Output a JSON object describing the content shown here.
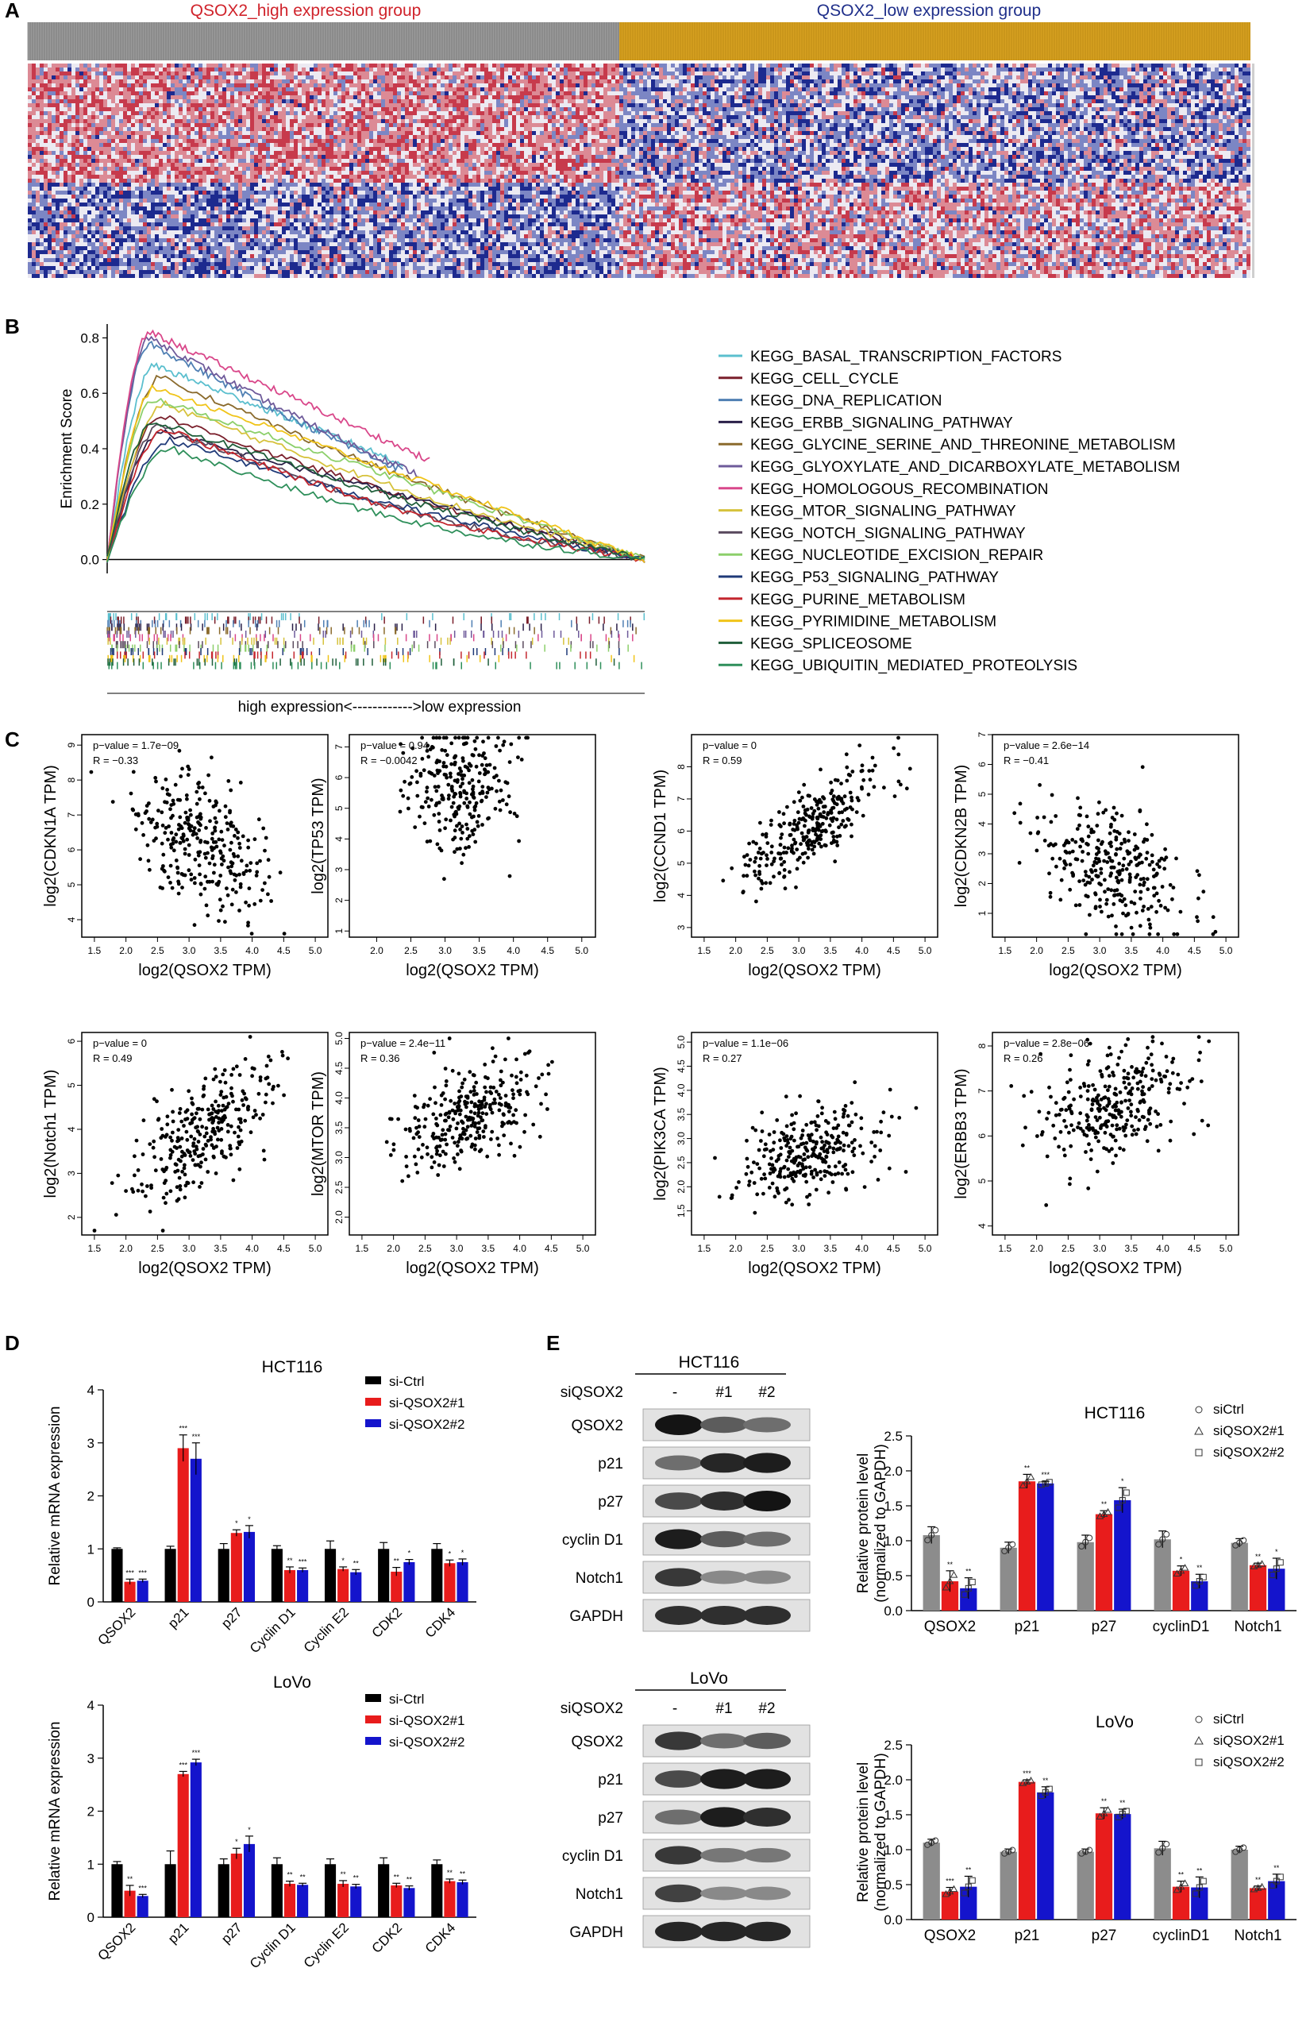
{
  "panel_letters": [
    "A",
    "B",
    "C",
    "D",
    "E"
  ],
  "colors": {
    "high_red": "#d0232b",
    "low_blue": "#1f2f8a",
    "heat_red": "#d24d5c",
    "heat_blue": "#27339a",
    "heat_white": "#f1f1f5",
    "gold": "#d6a020",
    "gray_bar": "#8c8c8c",
    "ctrl": "#000000",
    "kd1": "#e81c1c",
    "kd2": "#1414cc"
  },
  "panelA": {
    "high_group_label": "QSOX2_high expression group",
    "low_group_label": "QSOX2_low expression group"
  },
  "panelB": {
    "chart_data": {
      "type": "line",
      "title": "",
      "ylabel": "Enrichment Score",
      "xlabel": "high expression<------------>low expression",
      "ylim": [
        0,
        0.85
      ],
      "yticks": [
        "0.0",
        "0.2",
        "0.4",
        "0.6",
        "0.8"
      ],
      "series": [
        {
          "name": "KEGG_BASAL_TRANSCRIPTION_FACTORS",
          "color": "#5bbfce",
          "peak": 0.7,
          "peak_at": 0.09,
          "end_at": 0.55
        },
        {
          "name": "KEGG_CELL_CYCLE",
          "color": "#7a1f2b",
          "peak": 0.52,
          "peak_at": 0.1,
          "end_at": 1.0
        },
        {
          "name": "KEGG_DNA_REPLICATION",
          "color": "#4f7fb3",
          "peak": 0.78,
          "peak_at": 0.08,
          "end_at": 0.55
        },
        {
          "name": "KEGG_ERBB_SIGNALING_PATHWAY",
          "color": "#2a1f48",
          "peak": 0.46,
          "peak_at": 0.1,
          "end_at": 1.0
        },
        {
          "name": "KEGG_GLYCINE_SERINE_AND_THREONINE_METABOLISM",
          "color": "#8a6a2c",
          "peak": 0.66,
          "peak_at": 0.1,
          "end_at": 1.0
        },
        {
          "name": "KEGG_GLYOXYLATE_AND_DICARBOXYLATE_METABOLISM",
          "color": "#6e5a9a",
          "peak": 0.8,
          "peak_at": 0.08,
          "end_at": 0.58
        },
        {
          "name": "KEGG_HOMOLOGOUS_RECOMBINATION",
          "color": "#d9478a",
          "peak": 0.82,
          "peak_at": 0.08,
          "end_at": 0.6
        },
        {
          "name": "KEGG_MTOR_SIGNALING_PATHWAY",
          "color": "#d6c23c",
          "peak": 0.56,
          "peak_at": 0.11,
          "end_at": 1.0
        },
        {
          "name": "KEGG_NOTCH_SIGNALING_PATHWAY",
          "color": "#5a4a5e",
          "peak": 0.48,
          "peak_at": 0.1,
          "end_at": 1.0
        },
        {
          "name": "KEGG_NUCLEOTIDE_EXCISION_REPAIR",
          "color": "#8ccf6a",
          "peak": 0.58,
          "peak_at": 0.09,
          "end_at": 1.0
        },
        {
          "name": "KEGG_P53_SIGNALING_PATHWAY",
          "color": "#1f3a78",
          "peak": 0.43,
          "peak_at": 0.12,
          "end_at": 1.0
        },
        {
          "name": "KEGG_PURINE_METABOLISM",
          "color": "#c4262e",
          "peak": 0.47,
          "peak_at": 0.11,
          "end_at": 1.0
        },
        {
          "name": "KEGG_PYRIMIDINE_METABOLISM",
          "color": "#f0c419",
          "peak": 0.62,
          "peak_at": 0.09,
          "end_at": 1.0
        },
        {
          "name": "KEGG_SPLICEOSOME",
          "color": "#1f5e3a",
          "peak": 0.5,
          "peak_at": 0.09,
          "end_at": 1.0
        },
        {
          "name": "KEGG_UBIQUITIN_MEDIATED_PROTEOLYSIS",
          "color": "#2e8f5a",
          "peak": 0.4,
          "peak_at": 0.12,
          "end_at": 1.0
        }
      ]
    }
  },
  "panelC": {
    "chart_data": [
      {
        "type": "scatter",
        "ylabel": "log2(CDKN1A TPM)",
        "xlabel": "log2(QSOX2 TPM)",
        "pvalue": "p−value = 1.7e−09",
        "R": "R = −0.33",
        "xlim": [
          1.3,
          5.2
        ],
        "ylim": [
          3.5,
          9.3
        ],
        "xticks": [
          "1.5",
          "2.0",
          "2.5",
          "3.0",
          "3.5",
          "4.0",
          "4.5",
          "5.0"
        ],
        "yticks": [
          "4",
          "5",
          "6",
          "7",
          "8",
          "9"
        ],
        "slope": -0.8,
        "intercept": 8.7,
        "spread": 0.9,
        "n": 300,
        "xcenter": 3.2,
        "xsd": 0.55
      },
      {
        "type": "scatter",
        "ylabel": "log2(TP53 TPM)",
        "xlabel": "log2(QSOX2 TPM)",
        "pvalue": "p−value = 0.94",
        "R": "R = −0.0042",
        "xlim": [
          1.6,
          5.2
        ],
        "ylim": [
          0.8,
          7.4
        ],
        "xticks": [
          "2.0",
          "2.5",
          "3.0",
          "3.5",
          "4.0",
          "4.5",
          "5.0"
        ],
        "yticks": [
          "1",
          "2",
          "3",
          "4",
          "5",
          "6",
          "7"
        ],
        "slope": 0.0,
        "intercept": 5.7,
        "spread": 1.0,
        "n": 260,
        "xcenter": 3.2,
        "xsd": 0.4
      },
      {
        "type": "scatter",
        "ylabel": "log2(CCND1 TPM)",
        "xlabel": "log2(QSOX2 TPM)",
        "pvalue": "p−value = 0",
        "R": "R = 0.59",
        "xlim": [
          1.3,
          5.2
        ],
        "ylim": [
          2.7,
          9.0
        ],
        "xticks": [
          "1.5",
          "2.0",
          "2.5",
          "3.0",
          "3.5",
          "4.0",
          "4.5",
          "5.0"
        ],
        "yticks": [
          "3",
          "4",
          "5",
          "6",
          "7",
          "8"
        ],
        "slope": 1.3,
        "intercept": 2.0,
        "spread": 0.6,
        "n": 300,
        "xcenter": 3.2,
        "xsd": 0.55
      },
      {
        "type": "scatter",
        "ylabel": "log2(CDKN2B TPM)",
        "xlabel": "log2(QSOX2 TPM)",
        "pvalue": "p−value = 2.6e−14",
        "R": "R = −0.41",
        "xlim": [
          1.3,
          5.2
        ],
        "ylim": [
          0.2,
          7.0
        ],
        "xticks": [
          "1.5",
          "2.0",
          "2.5",
          "3.0",
          "3.5",
          "4.0",
          "4.5",
          "5.0"
        ],
        "yticks": [
          "1",
          "2",
          "3",
          "4",
          "5",
          "6",
          "7"
        ],
        "slope": -0.9,
        "intercept": 5.4,
        "spread": 1.0,
        "n": 300,
        "xcenter": 3.2,
        "xsd": 0.55
      },
      {
        "type": "scatter",
        "ylabel": "log2(Notch1 TPM)",
        "xlabel": "log2(QSOX2 TPM)",
        "pvalue": "p−value = 0",
        "R": "R = 0.49",
        "xlim": [
          1.3,
          5.2
        ],
        "ylim": [
          1.6,
          6.2
        ],
        "xticks": [
          "1.5",
          "2.0",
          "2.5",
          "3.0",
          "3.5",
          "4.0",
          "4.5",
          "5.0"
        ],
        "yticks": [
          "2",
          "3",
          "4",
          "5",
          "6"
        ],
        "slope": 0.85,
        "intercept": 1.2,
        "spread": 0.6,
        "n": 300,
        "xcenter": 3.2,
        "xsd": 0.55
      },
      {
        "type": "scatter",
        "ylabel": "log2(MTOR TPM)",
        "xlabel": "log2(QSOX2 TPM)",
        "pvalue": "p−value = 2.4e−11",
        "R": "R = 0.36",
        "xlim": [
          1.3,
          5.2
        ],
        "ylim": [
          1.7,
          5.1
        ],
        "xticks": [
          "1.5",
          "2.0",
          "2.5",
          "3.0",
          "3.5",
          "4.0",
          "4.5",
          "5.0"
        ],
        "yticks": [
          "2.0",
          "2.5",
          "3.0",
          "3.5",
          "4.0",
          "4.5",
          "5.0"
        ],
        "slope": 0.45,
        "intercept": 2.3,
        "spread": 0.4,
        "n": 300,
        "xcenter": 3.2,
        "xsd": 0.55
      },
      {
        "type": "scatter",
        "ylabel": "log2(PIK3CA TPM)",
        "xlabel": "log2(QSOX2 TPM)",
        "pvalue": "p−value = 1.1e−06",
        "R": "R = 0.27",
        "xlim": [
          1.3,
          5.2
        ],
        "ylim": [
          1.0,
          5.2
        ],
        "xticks": [
          "1.5",
          "2.0",
          "2.5",
          "3.0",
          "3.5",
          "4.0",
          "4.5",
          "5.0"
        ],
        "yticks": [
          "1.5",
          "2.0",
          "2.5",
          "3.0",
          "3.5",
          "4.0",
          "4.5",
          "5.0"
        ],
        "slope": 0.35,
        "intercept": 1.6,
        "spread": 0.45,
        "n": 300,
        "xcenter": 3.2,
        "xsd": 0.55
      },
      {
        "type": "scatter",
        "ylabel": "log2(ERBB3 TPM)",
        "xlabel": "log2(QSOX2 TPM)",
        "pvalue": "p−value = 2.8e−06",
        "R": "R = 0.26",
        "xlim": [
          1.3,
          5.2
        ],
        "ylim": [
          3.8,
          8.3
        ],
        "xticks": [
          "1.5",
          "2.0",
          "2.5",
          "3.0",
          "3.5",
          "4.0",
          "4.5",
          "5.0"
        ],
        "yticks": [
          "4",
          "5",
          "6",
          "7",
          "8"
        ],
        "slope": 0.45,
        "intercept": 5.2,
        "spread": 0.6,
        "n": 300,
        "xcenter": 3.2,
        "xsd": 0.55
      }
    ]
  },
  "panelD": {
    "chart_data": [
      {
        "type": "bar",
        "title": "HCT116",
        "ylabel": "Relative mRNA expression",
        "ylim": [
          0,
          4
        ],
        "yticks": [
          "0",
          "1",
          "2",
          "3",
          "4"
        ],
        "categories": [
          "QSOX2",
          "p21",
          "p27",
          "Cyclin D1",
          "Cyclin E2",
          "CDK2",
          "CDK4"
        ],
        "series": [
          {
            "name": "si-Ctrl",
            "color": "#000000",
            "values": [
              1.0,
              1.0,
              1.0,
              1.0,
              1.0,
              1.0,
              1.0
            ],
            "err": [
              0.02,
              0.05,
              0.1,
              0.06,
              0.15,
              0.12,
              0.1
            ],
            "sig": [
              "",
              "",
              "",
              "",
              "",
              "",
              ""
            ]
          },
          {
            "name": "si-QSOX2#1",
            "color": "#e81c1c",
            "values": [
              0.38,
              2.9,
              1.3,
              0.6,
              0.62,
              0.57,
              0.73
            ],
            "err": [
              0.05,
              0.25,
              0.06,
              0.06,
              0.04,
              0.08,
              0.06
            ],
            "sig": [
              "***",
              "***",
              "*",
              "**",
              "*",
              "**",
              "*"
            ]
          },
          {
            "name": "si-QSOX2#2",
            "color": "#1414cc",
            "values": [
              0.4,
              2.7,
              1.32,
              0.6,
              0.56,
              0.75,
              0.75
            ],
            "err": [
              0.03,
              0.3,
              0.12,
              0.04,
              0.05,
              0.05,
              0.06
            ],
            "sig": [
              "***",
              "***",
              "*",
              "***",
              "**",
              "*",
              "*"
            ]
          }
        ]
      },
      {
        "type": "bar",
        "title": "LoVo",
        "ylabel": "Relative mRNA expression",
        "ylim": [
          0,
          4
        ],
        "yticks": [
          "0",
          "1",
          "2",
          "3",
          "4"
        ],
        "categories": [
          "QSOX2",
          "p21",
          "p27",
          "Cyclin D1",
          "Cyclin E2",
          "CDK2",
          "CDK4"
        ],
        "series": [
          {
            "name": "si-Ctrl",
            "color": "#000000",
            "values": [
              1.0,
              1.0,
              1.0,
              1.0,
              1.0,
              1.0,
              1.0
            ],
            "err": [
              0.05,
              0.25,
              0.1,
              0.12,
              0.1,
              0.12,
              0.08
            ],
            "sig": [
              "",
              "",
              "",
              "",
              "",
              "",
              ""
            ]
          },
          {
            "name": "si-QSOX2#1",
            "color": "#e81c1c",
            "values": [
              0.5,
              2.7,
              1.2,
              0.63,
              0.63,
              0.6,
              0.68
            ],
            "err": [
              0.1,
              0.05,
              0.1,
              0.05,
              0.06,
              0.04,
              0.04
            ],
            "sig": [
              "**",
              "***",
              "*",
              "**",
              "**",
              "**",
              "**"
            ]
          },
          {
            "name": "si-QSOX2#2",
            "color": "#1414cc",
            "values": [
              0.4,
              2.92,
              1.38,
              0.61,
              0.58,
              0.55,
              0.66
            ],
            "err": [
              0.03,
              0.06,
              0.15,
              0.03,
              0.04,
              0.04,
              0.04
            ],
            "sig": [
              "***",
              "***",
              "*",
              "**",
              "**",
              "**",
              "**"
            ]
          }
        ]
      }
    ]
  },
  "panelE": {
    "blots": [
      {
        "cell_line": "HCT116",
        "row_header": "siQSOX2",
        "lanes": [
          "-",
          "#1",
          "#2"
        ],
        "proteins": [
          "QSOX2",
          "p21",
          "p27",
          "cyclin D1",
          "Notch1",
          "GAPDH"
        ],
        "intensity": [
          [
            1.0,
            0.6,
            0.5
          ],
          [
            0.5,
            0.9,
            0.95
          ],
          [
            0.7,
            0.85,
            1.0
          ],
          [
            0.95,
            0.6,
            0.5
          ],
          [
            0.8,
            0.35,
            0.35
          ],
          [
            0.85,
            0.85,
            0.85
          ]
        ]
      },
      {
        "cell_line": "LoVo",
        "row_header": "siQSOX2",
        "lanes": [
          "-",
          "#1",
          "#2"
        ],
        "proteins": [
          "QSOX2",
          "p21",
          "p27",
          "cyclin D1",
          "Notch1",
          "GAPDH"
        ],
        "intensity": [
          [
            0.8,
            0.5,
            0.6
          ],
          [
            0.7,
            0.95,
            0.95
          ],
          [
            0.5,
            0.95,
            0.85
          ],
          [
            0.8,
            0.45,
            0.45
          ],
          [
            0.75,
            0.35,
            0.35
          ],
          [
            0.9,
            0.9,
            0.9
          ]
        ]
      }
    ],
    "chart_data": [
      {
        "type": "bar",
        "title": "HCT116",
        "ylabel": "Relative protein level",
        "ylabel2": "(normalized to GAPDH)",
        "ylim": [
          0,
          2.5
        ],
        "yticks": [
          "0.0",
          "0.5",
          "1.0",
          "1.5",
          "2.0",
          "2.5"
        ],
        "categories": [
          "QSOX2",
          "p21",
          "p27",
          "cyclinD1",
          "Notch1"
        ],
        "series": [
          {
            "name": "siCtrl",
            "color": "#8c8c8c",
            "marker": "circle",
            "values": [
              1.08,
              0.9,
              0.98,
              1.02,
              0.97
            ],
            "err": [
              0.12,
              0.08,
              0.1,
              0.12,
              0.06
            ],
            "sig": [
              "",
              "",
              "",
              "",
              ""
            ]
          },
          {
            "name": "siQSOX2#1",
            "color": "#e81c1c",
            "marker": "triangle",
            "values": [
              0.42,
              1.85,
              1.38,
              0.57,
              0.65
            ],
            "err": [
              0.15,
              0.1,
              0.05,
              0.07,
              0.03
            ],
            "sig": [
              "**",
              "**",
              "**",
              "*",
              "**"
            ]
          },
          {
            "name": "siQSOX2#2",
            "color": "#1414cc",
            "marker": "square",
            "values": [
              0.32,
              1.82,
              1.58,
              0.42,
              0.6
            ],
            "err": [
              0.15,
              0.03,
              0.18,
              0.1,
              0.15
            ],
            "sig": [
              "**",
              "***",
              "*",
              "**",
              "*"
            ]
          }
        ]
      },
      {
        "type": "bar",
        "title": "LoVo",
        "ylabel": "Relative protein level",
        "ylabel2": "(normalized to GAPDH)",
        "ylim": [
          0,
          2.5
        ],
        "yticks": [
          "0.0",
          "0.5",
          "1.0",
          "1.5",
          "2.0",
          "2.5"
        ],
        "categories": [
          "QSOX2",
          "p21",
          "p27",
          "cyclinD1",
          "Notch1"
        ],
        "series": [
          {
            "name": "siCtrl",
            "color": "#8c8c8c",
            "marker": "circle",
            "values": [
              1.1,
              0.97,
              0.97,
              1.02,
              1.0
            ],
            "err": [
              0.05,
              0.04,
              0.04,
              0.1,
              0.05
            ],
            "sig": [
              "",
              "",
              "",
              "",
              ""
            ]
          },
          {
            "name": "siQSOX2#1",
            "color": "#e81c1c",
            "marker": "triangle",
            "values": [
              0.4,
              1.97,
              1.52,
              0.47,
              0.45
            ],
            "err": [
              0.06,
              0.03,
              0.08,
              0.08,
              0.03
            ],
            "sig": [
              "***",
              "***",
              "**",
              "**",
              "**"
            ]
          },
          {
            "name": "siQSOX2#2",
            "color": "#1414cc",
            "marker": "square",
            "values": [
              0.47,
              1.82,
              1.51,
              0.46,
              0.55
            ],
            "err": [
              0.15,
              0.08,
              0.07,
              0.15,
              0.1
            ],
            "sig": [
              "**",
              "**",
              "**",
              "**",
              "**"
            ]
          }
        ]
      }
    ]
  }
}
